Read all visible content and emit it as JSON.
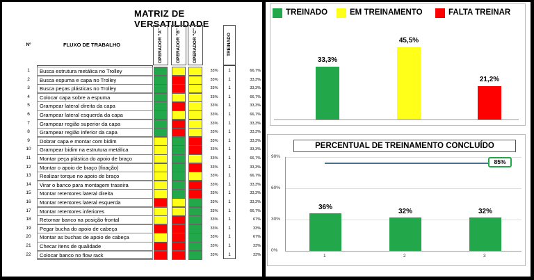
{
  "matrix": {
    "title": "MATRIZ DE VERSATILIDADE",
    "col_num": "Nº",
    "col_flow": "FLUXO DE TRABALHO",
    "operators": [
      "OPERADOR \"A\"",
      "OPERADOR \"B\"",
      "OPERADOR \"C\""
    ],
    "col_trained": "TREINADO",
    "colors": {
      "G": "#22a84a",
      "Y": "#ffff1a",
      "R": "#ff0000"
    },
    "rows": [
      {
        "n": "1",
        "flow": "Busca estrutura metálica no Trolley",
        "ops": [
          "G",
          "Y",
          "Y"
        ],
        "pct": "33%",
        "tr": "1",
        "ver": "66,7%"
      },
      {
        "n": "2",
        "flow": "Busca espuma e capa no Trolley",
        "ops": [
          "G",
          "R",
          "Y"
        ],
        "pct": "33%",
        "tr": "1",
        "ver": "33,3%"
      },
      {
        "n": "3",
        "flow": "Busca peças plásticas no Trolley",
        "ops": [
          "G",
          "R",
          "Y"
        ],
        "pct": "33%",
        "tr": "1",
        "ver": "33,3%"
      },
      {
        "n": "4",
        "flow": "Colocar capa sobre a espuma",
        "ops": [
          "G",
          "Y",
          "Y"
        ],
        "pct": "33%",
        "tr": "1",
        "ver": "66,7%"
      },
      {
        "n": "5",
        "flow": "Grampear lateral direita da capa",
        "ops": [
          "G",
          "R",
          "Y"
        ],
        "pct": "33%",
        "tr": "1",
        "ver": "33,3%"
      },
      {
        "n": "6",
        "flow": "Grampear lateral esquerda da capa",
        "ops": [
          "G",
          "Y",
          "Y"
        ],
        "pct": "33%",
        "tr": "1",
        "ver": "66,7%"
      },
      {
        "n": "7",
        "flow": "Grampear região superior da capa",
        "ops": [
          "G",
          "R",
          "Y"
        ],
        "pct": "33%",
        "tr": "1",
        "ver": "33,3%"
      },
      {
        "n": "8",
        "flow": "Grampear região inferior da capa",
        "ops": [
          "G",
          "R",
          "Y"
        ],
        "pct": "33%",
        "tr": "1",
        "ver": "33,3%"
      },
      {
        "n": "9",
        "flow": "Dobrar capa e montar com bidim",
        "ops": [
          "Y",
          "G",
          "R"
        ],
        "pct": "33%",
        "tr": "1",
        "ver": "33,3%"
      },
      {
        "n": "10",
        "flow": "Grampear bidim na estrutura metálica",
        "ops": [
          "Y",
          "G",
          "R"
        ],
        "pct": "33%",
        "tr": "1",
        "ver": "33,3%"
      },
      {
        "n": "11",
        "flow": "Montar peça plástica do apoio de braço",
        "ops": [
          "Y",
          "G",
          "Y"
        ],
        "pct": "33%",
        "tr": "1",
        "ver": "66,7%"
      },
      {
        "n": "12",
        "flow": "Montar o apoio de braço (fixação)",
        "ops": [
          "Y",
          "G",
          "R"
        ],
        "pct": "33%",
        "tr": "1",
        "ver": "33,3%"
      },
      {
        "n": "13",
        "flow": "Realizar torque no apoio de braço",
        "ops": [
          "Y",
          "G",
          "Y"
        ],
        "pct": "33%",
        "tr": "1",
        "ver": "66,7%"
      },
      {
        "n": "14",
        "flow": "Virar o banco para montagem traseira",
        "ops": [
          "Y",
          "G",
          "R"
        ],
        "pct": "33%",
        "tr": "1",
        "ver": "33,3%"
      },
      {
        "n": "15",
        "flow": "Montar retentores lateral direita",
        "ops": [
          "Y",
          "G",
          "R"
        ],
        "pct": "33%",
        "tr": "1",
        "ver": "33,3%"
      },
      {
        "n": "16",
        "flow": "Montar retentores lateral esquerda",
        "ops": [
          "R",
          "Y",
          "G"
        ],
        "pct": "33%",
        "tr": "1",
        "ver": "33,3%"
      },
      {
        "n": "17",
        "flow": "Montar retentores inferiores",
        "ops": [
          "Y",
          "Y",
          "G"
        ],
        "pct": "33%",
        "tr": "1",
        "ver": "66,7%"
      },
      {
        "n": "18",
        "flow": "Retornar banco na posição frontal",
        "ops": [
          "Y",
          "R",
          "G"
        ],
        "pct": "33%",
        "tr": "1",
        "ver": "67%"
      },
      {
        "n": "19",
        "flow": "Pegar bucha do apoio de cabeça",
        "ops": [
          "R",
          "R",
          "G"
        ],
        "pct": "33%",
        "tr": "1",
        "ver": "33%"
      },
      {
        "n": "20",
        "flow": "Montar as buchas de apoio de cabeça",
        "ops": [
          "Y",
          "R",
          "G"
        ],
        "pct": "33%",
        "tr": "1",
        "ver": "67%"
      },
      {
        "n": "21",
        "flow": "Checar itens de qualidade",
        "ops": [
          "R",
          "R",
          "G"
        ],
        "pct": "33%",
        "tr": "1",
        "ver": "33%"
      },
      {
        "n": "22",
        "flow": "Colocar banco no flow rack",
        "ops": [
          "R",
          "R",
          "G"
        ],
        "pct": "33%",
        "tr": "1",
        "ver": "33%"
      }
    ]
  },
  "legend": [
    {
      "label": "TREINADO",
      "color": "#22a84a"
    },
    {
      "label": "EM TREINAMENTO",
      "color": "#ffff1a"
    },
    {
      "label": "FALTA TREINAR",
      "color": "#ff0000"
    }
  ],
  "chart_data": [
    {
      "type": "bar",
      "categories": [
        "TREINADO",
        "EM TREINAMENTO",
        "FALTA TREINAR"
      ],
      "values": [
        33.3,
        45.5,
        21.2
      ],
      "labels": [
        "33,3%",
        "45,5%",
        "21,2%"
      ],
      "colors": [
        "#22a84a",
        "#ffff1a",
        "#ff0000"
      ],
      "ylim": [
        0,
        50
      ]
    },
    {
      "type": "bar",
      "title": "PERCENTUAL DE TREINAMENTO CONCLUÍDO",
      "categories": [
        "1",
        "2",
        "3"
      ],
      "values": [
        36,
        32,
        32
      ],
      "labels": [
        "36%",
        "32%",
        "32%"
      ],
      "color": "#22a84a",
      "yticks": [
        "0%",
        "30%",
        "60%",
        "90%"
      ],
      "ylim": [
        0,
        90
      ],
      "target_line": {
        "value": 85,
        "label": "85%"
      }
    }
  ]
}
